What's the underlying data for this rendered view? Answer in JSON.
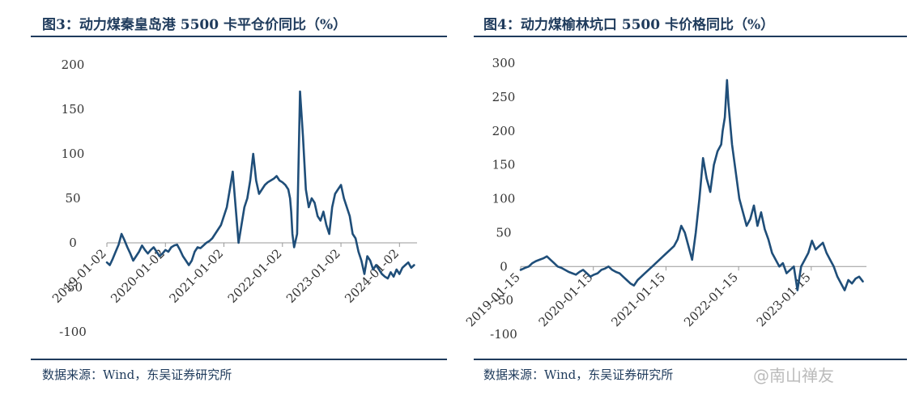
{
  "charts": [
    {
      "title": "图3：动力煤秦皇岛港 5500 卡平仓价同比（%）",
      "source": "数据来源：Wind，东吴证券研究所",
      "chart_data": {
        "type": "line",
        "title": "图3：动力煤秦皇岛港 5500 卡平仓价同比（%）",
        "xlabel": "",
        "ylabel": "",
        "ylim": [
          -100,
          200
        ],
        "yticks": [
          -100,
          -50,
          0,
          50,
          100,
          150,
          200
        ],
        "ytick_labels": [
          "-100",
          "-50",
          "0",
          "50",
          "100",
          "150",
          "200"
        ],
        "xlim": [
          2019.0,
          2024.3
        ],
        "xticks": [
          2019.0,
          2020.0,
          2021.0,
          2022.0,
          2023.0,
          2024.0
        ],
        "xtick_labels": [
          "2019-01-02",
          "2020-01-02",
          "2021-01-02",
          "2022-01-02",
          "2023-01-02",
          "2024-01-02"
        ],
        "grid": false,
        "legend": "none",
        "line_color": "#1f4e79",
        "series": [
          {
            "x": [
              2019.0,
              2019.05,
              2019.1,
              2019.15,
              2019.2,
              2019.25,
              2019.3,
              2019.35,
              2019.4,
              2019.45,
              2019.5,
              2019.55,
              2019.6,
              2019.65,
              2019.7,
              2019.75,
              2019.8,
              2019.85,
              2019.9,
              2019.95,
              2020.0,
              2020.05,
              2020.1,
              2020.15,
              2020.2,
              2020.25,
              2020.3,
              2020.35,
              2020.4,
              2020.45,
              2020.5,
              2020.55,
              2020.6,
              2020.65,
              2020.7,
              2020.75,
              2020.8,
              2020.85,
              2020.9,
              2020.95,
              2021.0,
              2021.05,
              2021.1,
              2021.15,
              2021.2,
              2021.25,
              2021.3,
              2021.35,
              2021.4,
              2021.45,
              2021.5,
              2021.55,
              2021.6,
              2021.65,
              2021.7,
              2021.75,
              2021.8,
              2021.85,
              2021.9,
              2021.95,
              2022.0,
              2022.05,
              2022.1,
              2022.13,
              2022.15,
              2022.17,
              2022.2,
              2022.25,
              2022.3,
              2022.35,
              2022.4,
              2022.45,
              2022.5,
              2022.55,
              2022.6,
              2022.65,
              2022.7,
              2022.75,
              2022.8,
              2022.85,
              2022.9,
              2022.95,
              2023.0,
              2023.05,
              2023.1,
              2023.15,
              2023.2,
              2023.25,
              2023.3,
              2023.35,
              2023.4,
              2023.45,
              2023.5,
              2023.55,
              2023.6,
              2023.65,
              2023.7,
              2023.75,
              2023.8,
              2023.85,
              2023.9,
              2023.95,
              2024.0,
              2024.05,
              2024.1,
              2024.15,
              2024.2,
              2024.25
            ],
            "y": [
              -22,
              -25,
              -18,
              -10,
              -2,
              10,
              3,
              -5,
              -12,
              -20,
              -15,
              -10,
              -3,
              -8,
              -12,
              -8,
              -5,
              -10,
              -15,
              -12,
              -8,
              -10,
              -5,
              -3,
              -2,
              -8,
              -15,
              -20,
              -25,
              -20,
              -10,
              -5,
              -6,
              -3,
              0,
              2,
              5,
              10,
              15,
              20,
              30,
              40,
              60,
              80,
              40,
              0,
              20,
              40,
              50,
              70,
              100,
              70,
              55,
              60,
              65,
              68,
              70,
              72,
              75,
              70,
              68,
              65,
              60,
              50,
              35,
              10,
              -5,
              10,
              170,
              120,
              60,
              40,
              50,
              45,
              30,
              25,
              35,
              20,
              10,
              40,
              55,
              60,
              65,
              50,
              40,
              30,
              10,
              5,
              -10,
              -20,
              -35,
              -15,
              -20,
              -30,
              -25,
              -30,
              -35,
              -38,
              -40,
              -33,
              -38,
              -30,
              -35,
              -28,
              -25,
              -22,
              -28,
              -25
            ]
          }
        ]
      }
    },
    {
      "title": "图4：动力煤榆林坑口 5500 卡价格同比（%）",
      "source": "数据来源：Wind，东吴证券研究所",
      "chart_data": {
        "type": "line",
        "title": "图4：动力煤榆林坑口 5500 卡价格同比（%）",
        "xlabel": "",
        "ylabel": "",
        "ylim": [
          -100,
          300
        ],
        "yticks": [
          -100,
          -50,
          0,
          50,
          100,
          150,
          200,
          250,
          300
        ],
        "ytick_labels": [
          "-100",
          "-50",
          "0",
          "50",
          "100",
          "150",
          "200",
          "250",
          "300"
        ],
        "xlim": [
          2019.04,
          2023.8
        ],
        "xticks": [
          2019.04,
          2020.04,
          2021.04,
          2022.04,
          2023.04
        ],
        "xtick_labels": [
          "2019-01-15",
          "2020-01-15",
          "2021-01-15",
          "2022-01-15",
          "2023-01-15"
        ],
        "grid": false,
        "legend": "none",
        "line_color": "#1f4e79",
        "series": [
          {
            "x": [
              2019.04,
              2019.1,
              2019.15,
              2019.2,
              2019.25,
              2019.3,
              2019.35,
              2019.4,
              2019.45,
              2019.5,
              2019.55,
              2019.6,
              2019.65,
              2019.7,
              2019.75,
              2019.8,
              2019.85,
              2019.9,
              2019.95,
              2020.0,
              2020.05,
              2020.1,
              2020.15,
              2020.2,
              2020.25,
              2020.3,
              2020.35,
              2020.4,
              2020.45,
              2020.5,
              2020.55,
              2020.6,
              2020.65,
              2020.7,
              2020.75,
              2020.8,
              2020.85,
              2020.9,
              2020.95,
              2021.0,
              2021.05,
              2021.1,
              2021.15,
              2021.2,
              2021.25,
              2021.3,
              2021.35,
              2021.4,
              2021.45,
              2021.5,
              2021.55,
              2021.6,
              2021.65,
              2021.7,
              2021.75,
              2021.8,
              2021.82,
              2021.85,
              2021.88,
              2021.9,
              2021.95,
              2022.0,
              2022.05,
              2022.1,
              2022.15,
              2022.2,
              2022.25,
              2022.3,
              2022.35,
              2022.4,
              2022.45,
              2022.5,
              2022.55,
              2022.6,
              2022.65,
              2022.7,
              2022.75,
              2022.8,
              2022.85,
              2022.9,
              2022.95,
              2023.0,
              2023.05,
              2023.1,
              2023.15,
              2023.2,
              2023.25,
              2023.3,
              2023.35,
              2023.4,
              2023.45,
              2023.5,
              2023.55,
              2023.6,
              2023.65,
              2023.7,
              2023.75
            ],
            "y": [
              -5,
              -2,
              0,
              5,
              8,
              10,
              12,
              15,
              10,
              5,
              0,
              -2,
              -5,
              -8,
              -10,
              -12,
              -8,
              -5,
              -10,
              -15,
              -12,
              -10,
              -5,
              -3,
              0,
              -5,
              -8,
              -10,
              -15,
              -20,
              -25,
              -28,
              -20,
              -15,
              -10,
              -5,
              0,
              5,
              10,
              15,
              20,
              25,
              30,
              40,
              60,
              50,
              30,
              10,
              50,
              100,
              160,
              130,
              110,
              150,
              170,
              180,
              200,
              220,
              275,
              240,
              180,
              140,
              100,
              80,
              60,
              70,
              90,
              60,
              80,
              55,
              40,
              20,
              10,
              0,
              5,
              -10,
              -5,
              0,
              -35,
              0,
              10,
              20,
              38,
              25,
              30,
              35,
              20,
              10,
              0,
              -15,
              -25,
              -35,
              -20,
              -25,
              -18,
              -15,
              -22
            ]
          }
        ]
      }
    }
  ],
  "watermark": "@南山禅友"
}
